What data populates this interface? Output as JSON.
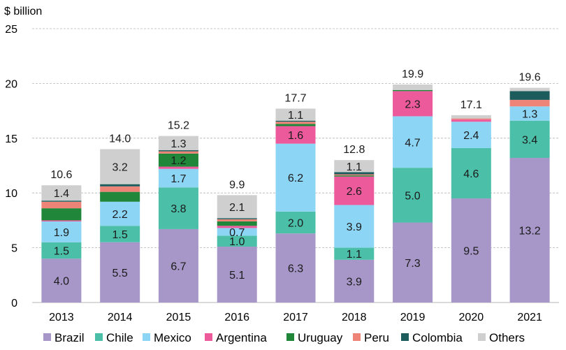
{
  "chart_data": {
    "type": "bar",
    "stacked": true,
    "unit_label": "$ billion",
    "categories": [
      "2013",
      "2014",
      "2015",
      "2016",
      "2017",
      "2018",
      "2019",
      "2020",
      "2021"
    ],
    "ylim": [
      0,
      25
    ],
    "yticks": [
      "0",
      "5",
      "10",
      "15",
      "20",
      "25"
    ],
    "grid": true,
    "legend_position": "bottom",
    "series": [
      {
        "name": "Brazil",
        "color": "#a797c8",
        "values": [
          4.0,
          5.5,
          6.7,
          5.1,
          6.3,
          3.9,
          7.3,
          9.5,
          13.2
        ],
        "labels": [
          "4.0",
          "5.5",
          "6.7",
          "5.1",
          "6.3",
          "3.9",
          "7.3",
          "9.5",
          "13.2"
        ]
      },
      {
        "name": "Chile",
        "color": "#4bbfa8",
        "values": [
          1.5,
          1.5,
          3.8,
          1.0,
          2.0,
          1.1,
          5.0,
          4.6,
          3.4
        ],
        "labels": [
          "1.5",
          "1.5",
          "3.8",
          "1.0",
          "2.0",
          "1.1",
          "5.0",
          "4.6",
          "3.4"
        ]
      },
      {
        "name": "Mexico",
        "color": "#8dd5f5",
        "values": [
          1.9,
          2.2,
          1.7,
          0.7,
          6.2,
          3.9,
          4.7,
          2.4,
          1.3
        ],
        "labels": [
          "1.9",
          "2.2",
          "1.7",
          "0.7",
          "6.2",
          "3.9",
          "4.7",
          "2.4",
          "1.3"
        ]
      },
      {
        "name": "Argentina",
        "color": "#ec5a9c",
        "values": [
          0.1,
          0.0,
          0.2,
          0.2,
          1.6,
          2.6,
          2.3,
          0.2,
          0.0
        ],
        "labels": [
          "",
          "",
          "",
          "",
          "1.6",
          "2.6",
          "2.3",
          "",
          ""
        ]
      },
      {
        "name": "Uruguay",
        "color": "#20873a",
        "values": [
          1.1,
          0.9,
          1.2,
          0.4,
          0.2,
          0.1,
          0.1,
          0.0,
          0.0
        ],
        "labels": [
          "",
          "",
          "1.2",
          "",
          "",
          "",
          "",
          "",
          ""
        ]
      },
      {
        "name": "Peru",
        "color": "#ee8478",
        "values": [
          0.6,
          0.5,
          0.2,
          0.2,
          0.2,
          0.1,
          0.0,
          0.1,
          0.6
        ],
        "labels": [
          "",
          "",
          "",
          "",
          "",
          "",
          "",
          "",
          ""
        ]
      },
      {
        "name": "Colombia",
        "color": "#1d5c5c",
        "values": [
          0.1,
          0.2,
          0.1,
          0.1,
          0.1,
          0.2,
          0.0,
          0.0,
          0.8
        ],
        "labels": [
          "",
          "",
          "",
          "",
          "",
          "",
          "",
          "",
          ""
        ]
      },
      {
        "name": "Others",
        "color": "#cfcfcf",
        "values": [
          1.4,
          3.2,
          1.3,
          2.1,
          1.1,
          1.1,
          0.5,
          0.3,
          0.3
        ],
        "labels": [
          "1.4",
          "3.2",
          "1.3",
          "2.1",
          "1.1",
          "1.1",
          "",
          "",
          ""
        ]
      }
    ],
    "totals": [
      "10.6",
      "14.0",
      "15.2",
      "9.9",
      "17.7",
      "12.8",
      "19.9",
      "17.1",
      "19.6"
    ]
  }
}
